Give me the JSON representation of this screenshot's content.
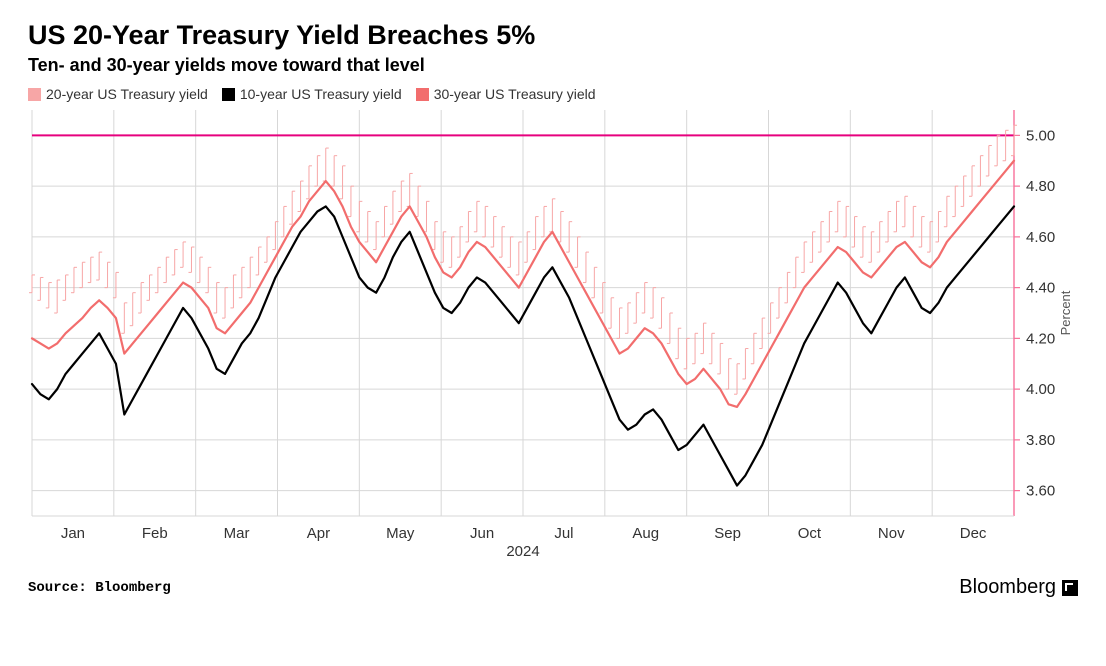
{
  "title": "US 20-Year Treasury Yield Breaches 5%",
  "subtitle": "Ten- and 30-year yields move toward that level",
  "source_label": "Source: Bloomberg",
  "brand": "Bloomberg",
  "chart": {
    "type": "line",
    "background_color": "#ffffff",
    "grid_color": "#d7d7d7",
    "axis_color": "#f7709a",
    "reference_line": {
      "value": 5.0,
      "color": "#e6007e",
      "width": 2
    },
    "y_axis": {
      "label": "Percent",
      "label_fontsize": 13,
      "min": 3.5,
      "max": 5.1,
      "ticks": [
        3.6,
        3.8,
        4.0,
        4.2,
        4.4,
        4.6,
        4.8,
        5.0
      ],
      "tick_color": "#f7709a",
      "side": "right"
    },
    "x_axis": {
      "label": "2024",
      "ticks": [
        "Jan",
        "Feb",
        "Mar",
        "Apr",
        "May",
        "Jun",
        "Jul",
        "Aug",
        "Sep",
        "Oct",
        "Nov",
        "Dec"
      ]
    },
    "legend": [
      {
        "label": "20-year US Treasury yield",
        "color": "#f7a6a6",
        "type": "ohlc"
      },
      {
        "label": "10-year US Treasury yield",
        "color": "#000000",
        "type": "line"
      },
      {
        "label": "30-year US Treasury yield",
        "color": "#f26d6d",
        "type": "line"
      }
    ],
    "series": {
      "s20_ohlc": {
        "color": "#f7a6a6",
        "stroke_width": 1,
        "data": [
          [
            4.38,
            4.45
          ],
          [
            4.35,
            4.44
          ],
          [
            4.32,
            4.42
          ],
          [
            4.3,
            4.43
          ],
          [
            4.35,
            4.45
          ],
          [
            4.38,
            4.48
          ],
          [
            4.4,
            4.5
          ],
          [
            4.42,
            4.52
          ],
          [
            4.43,
            4.54
          ],
          [
            4.4,
            4.5
          ],
          [
            4.36,
            4.46
          ],
          [
            4.22,
            4.34
          ],
          [
            4.25,
            4.38
          ],
          [
            4.3,
            4.42
          ],
          [
            4.35,
            4.45
          ],
          [
            4.38,
            4.48
          ],
          [
            4.42,
            4.52
          ],
          [
            4.45,
            4.55
          ],
          [
            4.48,
            4.58
          ],
          [
            4.46,
            4.56
          ],
          [
            4.42,
            4.52
          ],
          [
            4.38,
            4.48
          ],
          [
            4.3,
            4.42
          ],
          [
            4.28,
            4.4
          ],
          [
            4.32,
            4.45
          ],
          [
            4.36,
            4.48
          ],
          [
            4.4,
            4.52
          ],
          [
            4.45,
            4.56
          ],
          [
            4.5,
            4.6
          ],
          [
            4.55,
            4.66
          ],
          [
            4.6,
            4.72
          ],
          [
            4.65,
            4.78
          ],
          [
            4.7,
            4.82
          ],
          [
            4.75,
            4.88
          ],
          [
            4.8,
            4.92
          ],
          [
            4.82,
            4.95
          ],
          [
            4.8,
            4.92
          ],
          [
            4.75,
            4.88
          ],
          [
            4.68,
            4.8
          ],
          [
            4.62,
            4.74
          ],
          [
            4.58,
            4.7
          ],
          [
            4.55,
            4.66
          ],
          [
            4.6,
            4.72
          ],
          [
            4.65,
            4.78
          ],
          [
            4.7,
            4.82
          ],
          [
            4.72,
            4.85
          ],
          [
            4.68,
            4.8
          ],
          [
            4.62,
            4.74
          ],
          [
            4.55,
            4.66
          ],
          [
            4.5,
            4.62
          ],
          [
            4.48,
            4.6
          ],
          [
            4.52,
            4.64
          ],
          [
            4.58,
            4.7
          ],
          [
            4.62,
            4.74
          ],
          [
            4.6,
            4.72
          ],
          [
            4.56,
            4.68
          ],
          [
            4.52,
            4.64
          ],
          [
            4.48,
            4.6
          ],
          [
            4.45,
            4.58
          ],
          [
            4.5,
            4.62
          ],
          [
            4.55,
            4.68
          ],
          [
            4.6,
            4.72
          ],
          [
            4.62,
            4.75
          ],
          [
            4.58,
            4.7
          ],
          [
            4.54,
            4.66
          ],
          [
            4.48,
            4.6
          ],
          [
            4.42,
            4.54
          ],
          [
            4.36,
            4.48
          ],
          [
            4.3,
            4.42
          ],
          [
            4.24,
            4.36
          ],
          [
            4.2,
            4.32
          ],
          [
            4.22,
            4.34
          ],
          [
            4.26,
            4.38
          ],
          [
            4.3,
            4.42
          ],
          [
            4.28,
            4.4
          ],
          [
            4.24,
            4.36
          ],
          [
            4.18,
            4.3
          ],
          [
            4.12,
            4.24
          ],
          [
            4.08,
            4.2
          ],
          [
            4.1,
            4.22
          ],
          [
            4.14,
            4.26
          ],
          [
            4.1,
            4.22
          ],
          [
            4.06,
            4.18
          ],
          [
            4.0,
            4.12
          ],
          [
            3.98,
            4.1
          ],
          [
            4.04,
            4.16
          ],
          [
            4.1,
            4.22
          ],
          [
            4.16,
            4.28
          ],
          [
            4.22,
            4.34
          ],
          [
            4.28,
            4.4
          ],
          [
            4.34,
            4.46
          ],
          [
            4.4,
            4.52
          ],
          [
            4.46,
            4.58
          ],
          [
            4.5,
            4.62
          ],
          [
            4.54,
            4.66
          ],
          [
            4.58,
            4.7
          ],
          [
            4.62,
            4.74
          ],
          [
            4.6,
            4.72
          ],
          [
            4.56,
            4.68
          ],
          [
            4.52,
            4.64
          ],
          [
            4.5,
            4.62
          ],
          [
            4.54,
            4.66
          ],
          [
            4.58,
            4.7
          ],
          [
            4.62,
            4.74
          ],
          [
            4.64,
            4.76
          ],
          [
            4.6,
            4.72
          ],
          [
            4.56,
            4.68
          ],
          [
            4.54,
            4.66
          ],
          [
            4.58,
            4.7
          ],
          [
            4.64,
            4.76
          ],
          [
            4.68,
            4.8
          ],
          [
            4.72,
            4.84
          ],
          [
            4.76,
            4.88
          ],
          [
            4.8,
            4.92
          ],
          [
            4.84,
            4.96
          ],
          [
            4.88,
            5.0
          ],
          [
            4.9,
            5.02
          ],
          [
            4.92,
            5.04
          ]
        ]
      },
      "s30": {
        "color": "#f26d6d",
        "stroke_width": 2.2,
        "data": [
          4.2,
          4.18,
          4.16,
          4.18,
          4.22,
          4.25,
          4.28,
          4.32,
          4.35,
          4.32,
          4.28,
          4.14,
          4.18,
          4.22,
          4.26,
          4.3,
          4.34,
          4.38,
          4.42,
          4.4,
          4.36,
          4.32,
          4.24,
          4.22,
          4.26,
          4.3,
          4.34,
          4.4,
          4.46,
          4.52,
          4.58,
          4.64,
          4.68,
          4.74,
          4.78,
          4.82,
          4.78,
          4.72,
          4.64,
          4.58,
          4.54,
          4.5,
          4.56,
          4.62,
          4.68,
          4.72,
          4.66,
          4.6,
          4.52,
          4.46,
          4.44,
          4.48,
          4.54,
          4.58,
          4.56,
          4.52,
          4.48,
          4.44,
          4.4,
          4.46,
          4.52,
          4.58,
          4.62,
          4.56,
          4.5,
          4.44,
          4.38,
          4.32,
          4.26,
          4.2,
          4.14,
          4.16,
          4.2,
          4.24,
          4.22,
          4.18,
          4.12,
          4.06,
          4.02,
          4.04,
          4.08,
          4.04,
          4.0,
          3.94,
          3.93,
          3.98,
          4.04,
          4.1,
          4.16,
          4.22,
          4.28,
          4.34,
          4.4,
          4.44,
          4.48,
          4.52,
          4.56,
          4.54,
          4.5,
          4.46,
          4.44,
          4.48,
          4.52,
          4.56,
          4.58,
          4.54,
          4.5,
          4.48,
          4.52,
          4.58,
          4.62,
          4.66,
          4.7,
          4.74,
          4.78,
          4.82,
          4.86,
          4.9
        ]
      },
      "s10": {
        "color": "#000000",
        "stroke_width": 2.2,
        "data": [
          4.02,
          3.98,
          3.96,
          4.0,
          4.06,
          4.1,
          4.14,
          4.18,
          4.22,
          4.16,
          4.1,
          3.9,
          3.96,
          4.02,
          4.08,
          4.14,
          4.2,
          4.26,
          4.32,
          4.28,
          4.22,
          4.16,
          4.08,
          4.06,
          4.12,
          4.18,
          4.22,
          4.28,
          4.36,
          4.44,
          4.5,
          4.56,
          4.62,
          4.66,
          4.7,
          4.72,
          4.68,
          4.6,
          4.52,
          4.44,
          4.4,
          4.38,
          4.44,
          4.52,
          4.58,
          4.62,
          4.54,
          4.46,
          4.38,
          4.32,
          4.3,
          4.34,
          4.4,
          4.44,
          4.42,
          4.38,
          4.34,
          4.3,
          4.26,
          4.32,
          4.38,
          4.44,
          4.48,
          4.42,
          4.36,
          4.28,
          4.2,
          4.12,
          4.04,
          3.96,
          3.88,
          3.84,
          3.86,
          3.9,
          3.92,
          3.88,
          3.82,
          3.76,
          3.78,
          3.82,
          3.86,
          3.8,
          3.74,
          3.68,
          3.62,
          3.66,
          3.72,
          3.78,
          3.86,
          3.94,
          4.02,
          4.1,
          4.18,
          4.24,
          4.3,
          4.36,
          4.42,
          4.38,
          4.32,
          4.26,
          4.22,
          4.28,
          4.34,
          4.4,
          4.44,
          4.38,
          4.32,
          4.3,
          4.34,
          4.4,
          4.44,
          4.48,
          4.52,
          4.56,
          4.6,
          4.64,
          4.68,
          4.72
        ]
      }
    }
  }
}
